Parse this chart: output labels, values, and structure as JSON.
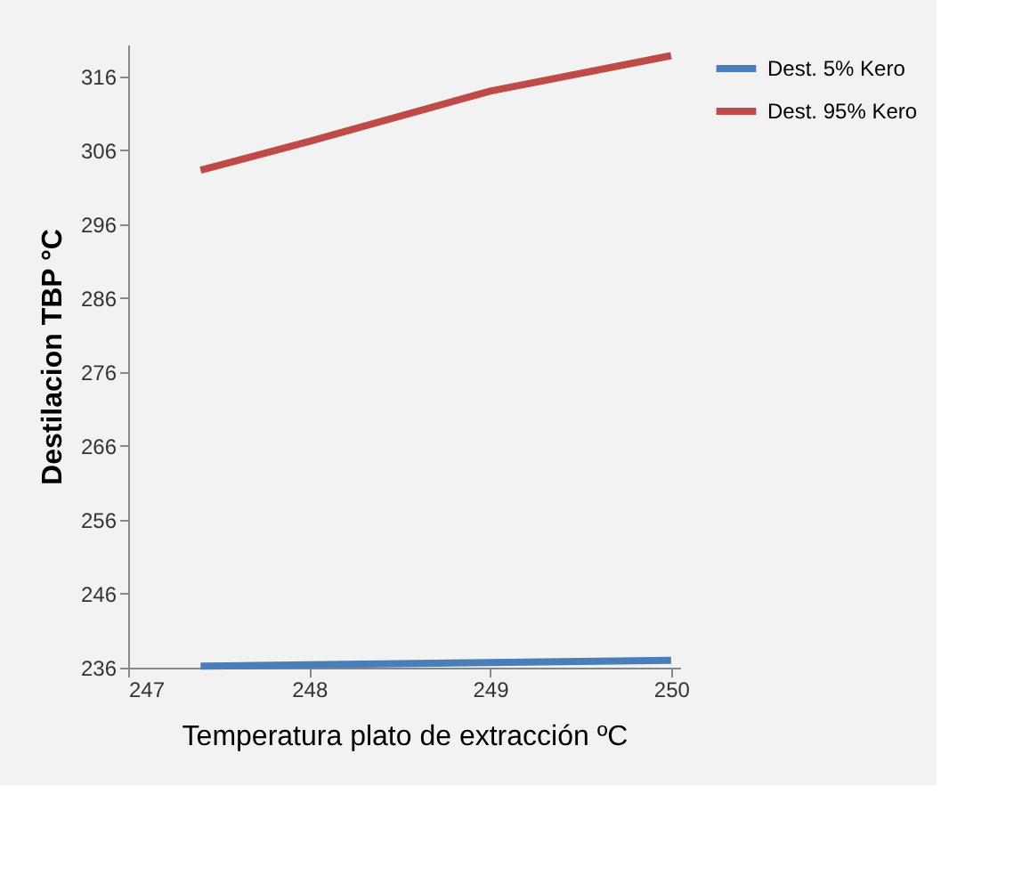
{
  "chart_data": {
    "type": "line",
    "xlabel": "Temperatura plato de extracción ºC",
    "ylabel": "Destilacion TBP °C",
    "xlim": [
      247,
      250.05
    ],
    "xticks": [
      247,
      248,
      249,
      250
    ],
    "ylim": [
      236,
      320.3
    ],
    "yticks": [
      236,
      246,
      256,
      266,
      276,
      286,
      296,
      306,
      316
    ],
    "grid": false,
    "legend": "right",
    "line_style": "solid",
    "marker": "none",
    "series": [
      {
        "name": "Dest. 5% Kero",
        "color": "#4a7ebb",
        "x": [
          247.4,
          248,
          249,
          250
        ],
        "values": [
          236.2,
          236.4,
          236.7,
          237
        ]
      },
      {
        "name": "Dest. 95% Kero",
        "color": "#be4b48",
        "x": [
          247.4,
          248,
          249,
          250
        ],
        "values": [
          303.3,
          307.2,
          314,
          318.8
        ]
      }
    ]
  }
}
